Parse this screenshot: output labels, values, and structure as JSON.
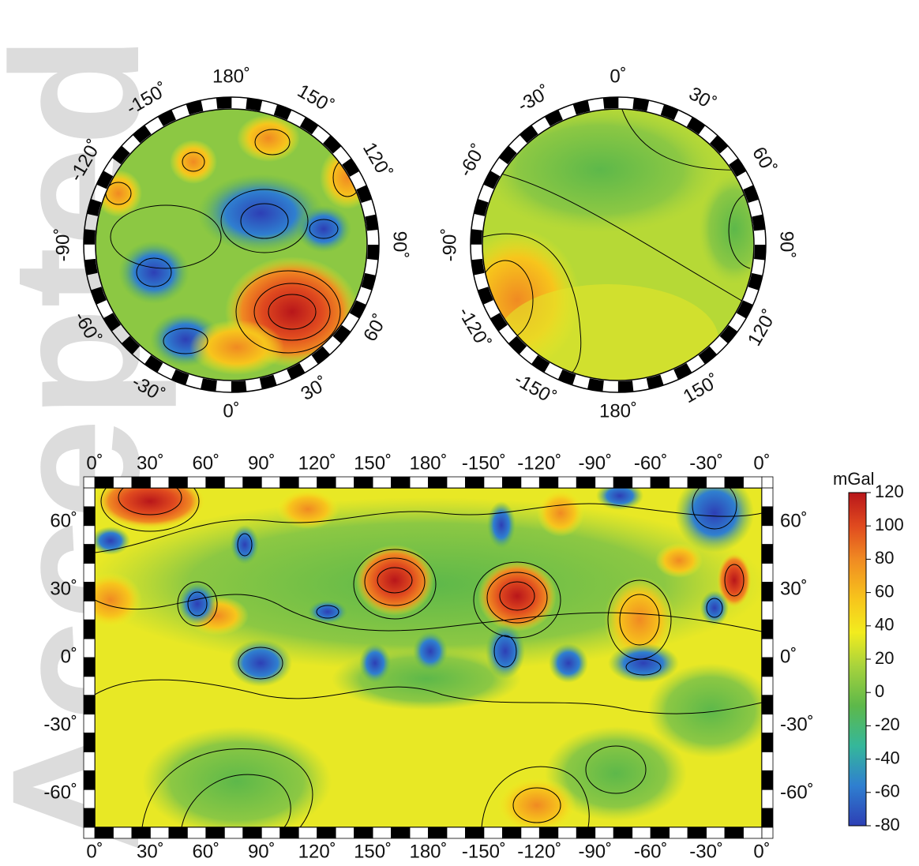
{
  "watermark": "Accepted Article",
  "north_polar": {
    "lon_labels": [
      "180˚",
      "150˚",
      "120˚",
      "90˚",
      "60˚",
      "30˚",
      "0˚",
      "-30˚",
      "-60˚",
      "-90˚",
      "-120˚",
      "-150˚"
    ]
  },
  "south_polar": {
    "lon_labels": [
      "0˚",
      "30˚",
      "60˚",
      "90˚",
      "120˚",
      "150˚",
      "180˚",
      "-150˚",
      "-120˚",
      "-90˚",
      "-60˚",
      "-30˚"
    ]
  },
  "cylindrical": {
    "top_labels": [
      "0˚",
      "30˚",
      "60˚",
      "90˚",
      "120˚",
      "150˚",
      "180˚",
      "-150˚",
      "-120˚",
      "-90˚",
      "-60˚",
      "-30˚",
      "0˚"
    ],
    "bottom_labels": [
      "0˚",
      "30˚",
      "60˚",
      "90˚",
      "120˚",
      "150˚",
      "180˚",
      "-150˚",
      "-120˚",
      "-90˚",
      "-60˚",
      "-30˚",
      "0˚"
    ],
    "left_labels": [
      "60˚",
      "30˚",
      "0˚",
      "-30˚",
      "-60˚"
    ],
    "right_labels": [
      "60˚",
      "30˚",
      "0˚",
      "-30˚",
      "-60˚"
    ]
  },
  "colorbar": {
    "unit": "mGal",
    "ticks": [
      "120",
      "100",
      "80",
      "60",
      "40",
      "20",
      "0",
      "-20",
      "-40",
      "-60",
      "-80"
    ],
    "min": -80,
    "max": 120,
    "colors": [
      "#2d3fb5",
      "#2f8fd0",
      "#35b79a",
      "#5db84a",
      "#a8d33c",
      "#f2ec1e",
      "#f7c51c",
      "#f08a22",
      "#e04a1f",
      "#b8161a"
    ]
  }
}
